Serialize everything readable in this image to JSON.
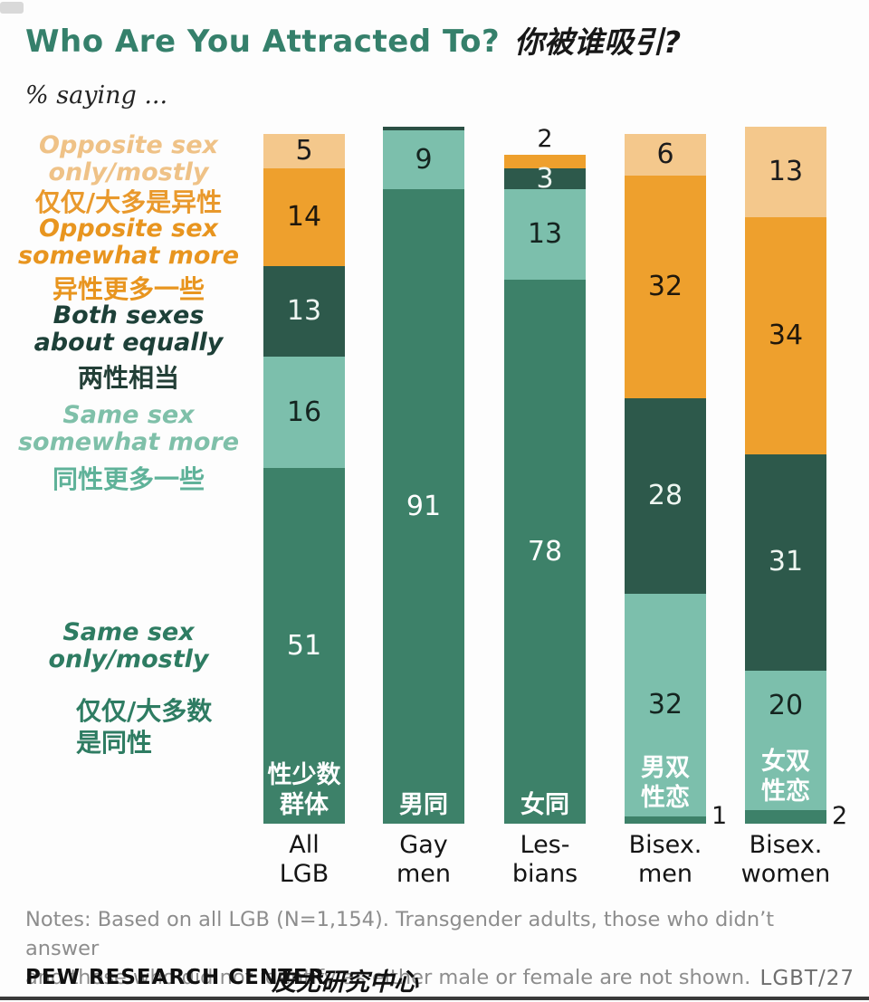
{
  "header": {
    "title_en": "Who Are You Attracted To?",
    "title_zh": "你被谁吸引?"
  },
  "subtitle": "% saying ...",
  "legend": {
    "position": "left",
    "items": [
      {
        "en": "Opposite sex\nonly/mostly",
        "zh": "仅仅/大多是异性",
        "en_color": "#efc287",
        "zh_color": "#e9992c"
      },
      {
        "en": "Opposite sex\nsomewhat more",
        "zh": "异性更多一些",
        "en_color": "#e8951f",
        "zh_color": "#e8951f"
      },
      {
        "en": "Both sexes\nabout equally",
        "zh": "两性相当",
        "en_color": "#1d4038",
        "zh_color": "#233f37"
      },
      {
        "en": "Same sex\nsomewhat more",
        "zh": "同性更多一些",
        "en_color": "#7fc0a9",
        "zh_color": "#5fb299"
      },
      {
        "en": "Same sex\nonly/mostly",
        "zh": "仅仅/大多数\n是同性",
        "en_color": "#2e7c62",
        "zh_color": "#2e7c62"
      }
    ]
  },
  "chart_data": {
    "type": "bar",
    "subtype": "stacked_vertical",
    "title": "Who Are You Attracted To?",
    "title_zh": "你被谁吸引?",
    "unit": "percent",
    "value_range": [
      0,
      100
    ],
    "grid": false,
    "legend_position": "left",
    "stack_order_top_to_bottom": [
      "opposite_only_mostly",
      "opposite_somewhat_more",
      "both_about_equally",
      "same_somewhat_more",
      "same_only_mostly"
    ],
    "segment_styles": {
      "opposite_only_mostly": {
        "color": "#f4c88c",
        "text": "#1c1c1c"
      },
      "opposite_somewhat_more": {
        "color": "#eea02d",
        "text": "#20180c"
      },
      "both_about_equally": {
        "color": "#2d594b",
        "text": "#eef6f1"
      },
      "same_somewhat_more": {
        "color": "#7cbfac",
        "text": "#152520"
      },
      "same_only_mostly": {
        "color": "#3d8169",
        "text": "#ffffff"
      }
    },
    "categories": [
      {
        "id": "all-lgb",
        "label": "All\nLGB",
        "segments": [
          {
            "key": "opposite_only_mostly",
            "value": 5,
            "label_position": "inside"
          },
          {
            "key": "opposite_somewhat_more",
            "value": 14,
            "label_position": "inside"
          },
          {
            "key": "both_about_equally",
            "value": 13,
            "label_position": "inside"
          },
          {
            "key": "same_somewhat_more",
            "value": 16,
            "label_position": "inside"
          },
          {
            "key": "same_only_mostly",
            "value": 51,
            "label_position": "inside",
            "zh_label": "性少数\n群体"
          }
        ]
      },
      {
        "id": "gay-men",
        "label": "Gay\nmen",
        "top_edge": true,
        "segments": [
          {
            "key": "same_somewhat_more",
            "value": 9,
            "label_position": "inside"
          },
          {
            "key": "same_only_mostly",
            "value": 91,
            "label_position": "inside",
            "zh_label": "男同"
          }
        ]
      },
      {
        "id": "lesbians",
        "label": "Les-\nbians",
        "segments": [
          {
            "key": "opposite_somewhat_more",
            "value": 2,
            "label_position": "above"
          },
          {
            "key": "both_about_equally",
            "value": 3,
            "label_position": "inside"
          },
          {
            "key": "same_somewhat_more",
            "value": 13,
            "label_position": "inside"
          },
          {
            "key": "same_only_mostly",
            "value": 78,
            "label_position": "inside",
            "zh_label": "女同"
          }
        ]
      },
      {
        "id": "bisex-men",
        "label": "Bisex.\nmen",
        "segments": [
          {
            "key": "opposite_only_mostly",
            "value": 6,
            "label_position": "inside"
          },
          {
            "key": "opposite_somewhat_more",
            "value": 32,
            "label_position": "inside"
          },
          {
            "key": "both_about_equally",
            "value": 28,
            "label_position": "inside"
          },
          {
            "key": "same_somewhat_more",
            "value": 32,
            "label_position": "inside",
            "zh_label": "男双\n性恋"
          },
          {
            "key": "same_only_mostly",
            "value": 1,
            "label_position": "right"
          }
        ]
      },
      {
        "id": "bisex-women",
        "label": "Bisex.\nwomen",
        "segments": [
          {
            "key": "opposite_only_mostly",
            "value": 13,
            "label_position": "inside"
          },
          {
            "key": "opposite_somewhat_more",
            "value": 34,
            "label_position": "inside"
          },
          {
            "key": "both_about_equally",
            "value": 31,
            "label_position": "inside"
          },
          {
            "key": "same_somewhat_more",
            "value": 20,
            "label_position": "inside",
            "zh_label": "女双\n性恋"
          },
          {
            "key": "same_only_mostly",
            "value": 2,
            "label_position": "right"
          }
        ]
      }
    ]
  },
  "notes": "Notes: Based on all LGB (N=1,154). Transgender adults, those who didn’t answer\nand those who did not identify as either male or female are not shown.",
  "footer": {
    "source": "PEW RESEARCH CENTER",
    "source_zh": "皮尤研究中心",
    "tag": "LGBT/27"
  }
}
